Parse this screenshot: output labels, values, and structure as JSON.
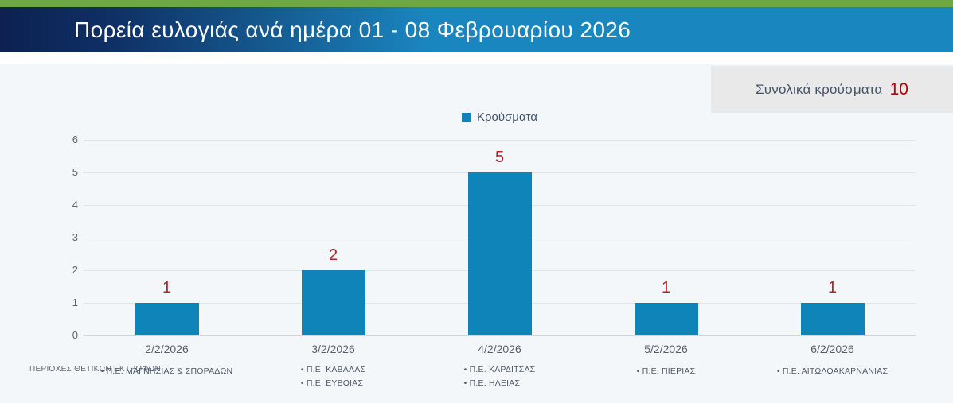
{
  "header": {
    "title": "Πορεία ευλογιάς ανά ημέρα 01 - 08 Φεβρουαρίου 2026",
    "accent_green": "#6ea844",
    "gradient_from": "#0c2151",
    "gradient_to": "#1a86c0"
  },
  "summary_badge": {
    "label": "Συνολικά κρούσματα",
    "value": "10",
    "value_color": "#c00000",
    "background": "#e9e9ea"
  },
  "legend": {
    "items": [
      {
        "label": "Κρούσματα",
        "marker": "square",
        "color": "#0e84b8"
      }
    ]
  },
  "chart_data": {
    "type": "bar",
    "title": "Πορεία ευλογιάς ανά ημέρα 01 - 08 Φεβρουαρίου 2026",
    "series_name": "Κρούσματα",
    "categories": [
      "2/2/2026",
      "3/2/2026",
      "4/2/2026",
      "5/2/2026",
      "6/2/2026"
    ],
    "values": [
      1,
      2,
      5,
      1,
      1
    ],
    "data_labels": [
      "1",
      "2",
      "5",
      "1",
      "1"
    ],
    "total": 10,
    "xlabel": "",
    "ylabel": "",
    "ylim": [
      0,
      6
    ],
    "yticks": [
      0,
      1,
      2,
      3,
      4,
      5,
      6
    ],
    "grid": true,
    "legend_position": "top-center",
    "bar_color": "#0e84b8",
    "data_label_color": "#b42025",
    "background": "#f4f7fa"
  },
  "regions": {
    "row_label": "ΠΕΡΙΟΧΕΣ ΘΕΤΙΚΩΝ ΕΚΤΡΟΦΩΝ",
    "bullet": "•",
    "by_day": [
      [
        "Π.Ε. ΜΑΓΝΗΣΙΑΣ & ΣΠΟΡΑΔΩΝ"
      ],
      [
        "Π.Ε. ΚΑΒΑΛΑΣ",
        "Π.Ε. ΕΥΒΟΙΑΣ"
      ],
      [
        "Π.Ε. ΚΑΡΔΙΤΣΑΣ",
        "Π.Ε. ΗΛΕΙΑΣ"
      ],
      [
        "Π.Ε. ΠΙΕΡΙΑΣ"
      ],
      [
        "Π.Ε. ΑΙΤΩΛΟΑΚΑΡΝΑΝΙΑΣ"
      ]
    ]
  }
}
